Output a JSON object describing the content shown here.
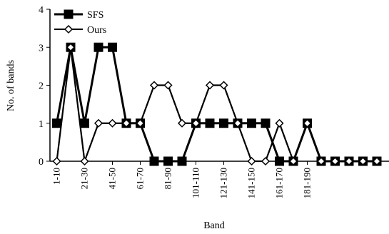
{
  "chart_data": {
    "type": "line",
    "xlabel": "Band",
    "ylabel": "No. of bands",
    "ylim": [
      0,
      4
    ],
    "yticks": [
      0,
      1,
      2,
      3,
      4
    ],
    "x_points": 24,
    "x_tick_labels": [
      "1-10",
      "21-30",
      "41-50",
      "61-70",
      "81-90",
      "101-110",
      "121-130",
      "141-150",
      "161-170",
      "181-190"
    ],
    "x_tick_positions": [
      1,
      3,
      5,
      7,
      9,
      11,
      13,
      15,
      17,
      19
    ],
    "legend_position": "top-left",
    "grid": false,
    "series": [
      {
        "name": "SFS",
        "marker": "filled-square",
        "values": [
          1,
          3,
          1,
          3,
          3,
          1,
          1,
          0,
          0,
          0,
          1,
          1,
          1,
          1,
          1,
          1,
          0,
          0,
          1,
          0,
          0,
          0,
          0,
          0
        ]
      },
      {
        "name": "Ours",
        "marker": "open-diamond",
        "values": [
          0,
          3,
          0,
          1,
          1,
          1,
          1,
          2,
          2,
          1,
          1,
          2,
          2,
          1,
          0,
          0,
          1,
          0,
          1,
          0,
          0,
          0,
          0,
          0
        ]
      }
    ]
  }
}
